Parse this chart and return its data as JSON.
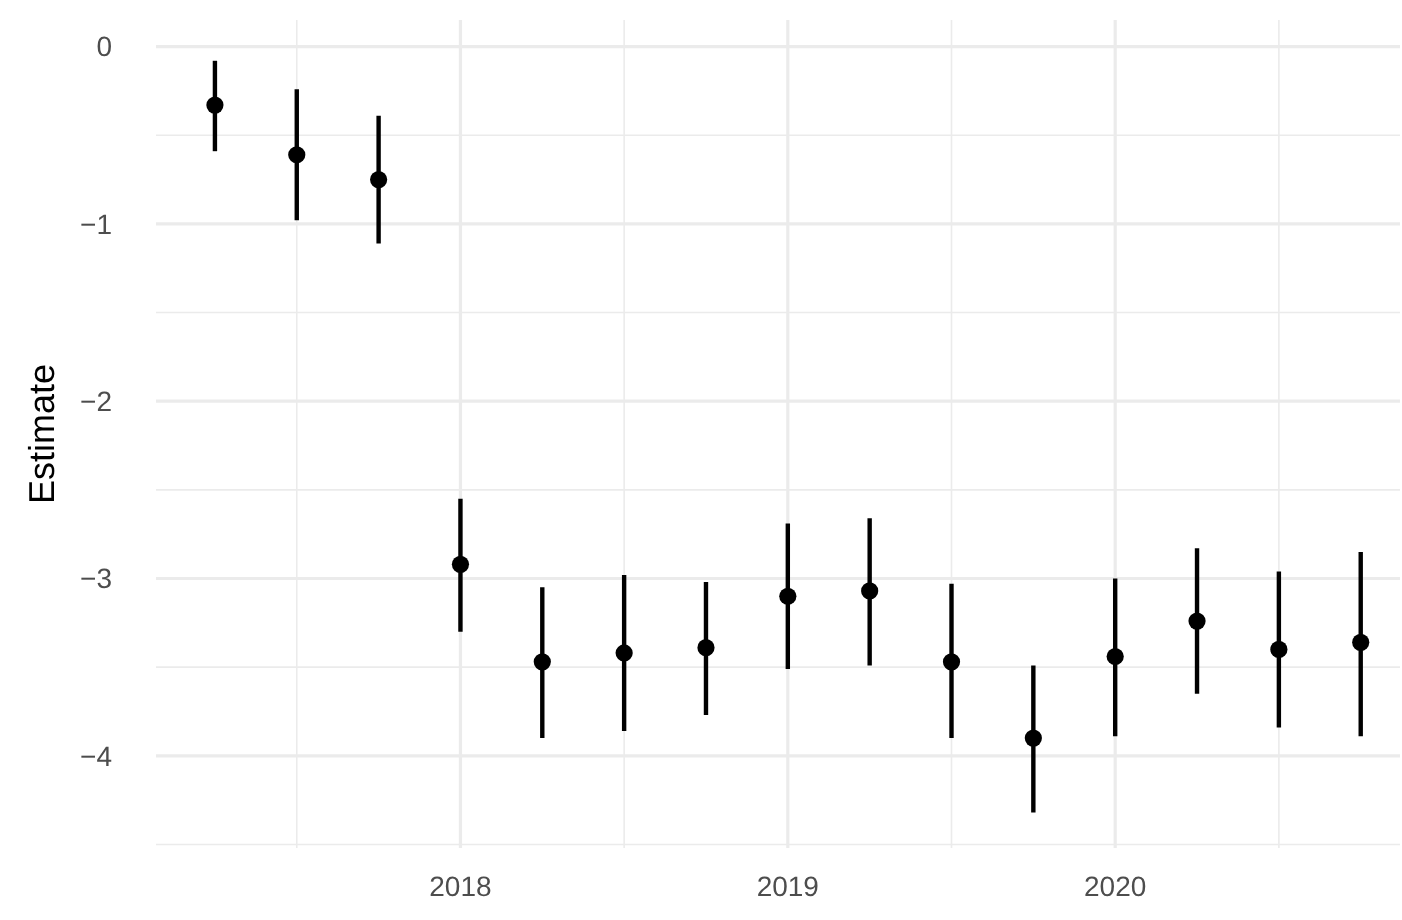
{
  "chart_data": {
    "type": "scatter",
    "ylabel": "Estimate",
    "marker": "circle",
    "grid": true,
    "x": [
      2017.25,
      2017.5,
      2017.75,
      2018,
      2018.25,
      2018.5,
      2018.75,
      2019,
      2019.25,
      2019.5,
      2019.75,
      2020,
      2020.25,
      2020.5,
      2020.75
    ],
    "series": [
      {
        "color": "#000000",
        "values": [
          -0.33,
          -0.61,
          -0.75,
          -2.92,
          -3.47,
          -3.42,
          -3.39,
          -3.1,
          -3.07,
          -3.47,
          -3.9,
          -3.44,
          -3.24,
          -3.4,
          -3.36
        ],
        "errors": [
          [
            -0.59,
            -0.08
          ],
          [
            -0.98,
            -0.24
          ],
          [
            -1.11,
            -0.39
          ],
          [
            -3.3,
            -2.55
          ],
          [
            -3.9,
            -3.05
          ],
          [
            -3.86,
            -2.98
          ],
          [
            -3.77,
            -3.02
          ],
          [
            -3.51,
            -2.69
          ],
          [
            -3.49,
            -2.66
          ],
          [
            -3.9,
            -3.03
          ],
          [
            -4.32,
            -3.49
          ],
          [
            -3.89,
            -3.0
          ],
          [
            -3.65,
            -2.83
          ],
          [
            -3.84,
            -2.96
          ],
          [
            -3.89,
            -2.85
          ]
        ]
      }
    ],
    "xlim": [
      2017.07,
      2020.87
    ],
    "xticks": [
      {
        "value": 2017.5,
        "label": null
      },
      2018,
      {
        "value": 2018.5,
        "label": null
      },
      2019,
      {
        "value": 2019.5,
        "label": null
      },
      2020,
      {
        "value": 2020.5,
        "label": null
      }
    ],
    "ylim": [
      -4.52,
      0.15
    ],
    "yticks": [
      {
        "value": -4.5,
        "label": null
      },
      {
        "value": -4,
        "label": "−4"
      },
      {
        "value": -3.5,
        "label": null
      },
      {
        "value": -3,
        "label": "−3"
      },
      {
        "value": -2.5,
        "label": null
      },
      {
        "value": -2,
        "label": "−2"
      },
      {
        "value": -1.5,
        "label": null
      },
      {
        "value": -1,
        "label": "−1"
      },
      {
        "value": -0.5,
        "label": null
      },
      0
    ]
  }
}
